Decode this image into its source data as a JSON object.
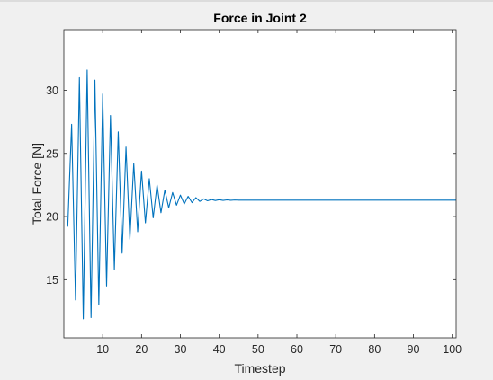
{
  "chart_data": {
    "type": "line",
    "title": "Force in Joint 2",
    "xlabel": "Timestep",
    "ylabel": "Total Force [N]",
    "xlim": [
      0,
      101
    ],
    "ylim": [
      10.4,
      34.8
    ],
    "xticks": [
      10,
      20,
      30,
      40,
      50,
      60,
      70,
      80,
      90,
      100
    ],
    "yticks": [
      15,
      20,
      25,
      30
    ],
    "grid": false,
    "line_color": "#0072bd",
    "series": [
      {
        "x": [
          1,
          2,
          3,
          4,
          5,
          6,
          7,
          8,
          9,
          10,
          11,
          12,
          13,
          14,
          15,
          16,
          17,
          18,
          19,
          20,
          21,
          22,
          23,
          24,
          25,
          26,
          27,
          28,
          29,
          30,
          31,
          32,
          33,
          34,
          35,
          36,
          37,
          38,
          39,
          40,
          41,
          42,
          43,
          44,
          45,
          46,
          47,
          48,
          49,
          50,
          51,
          52,
          53,
          54,
          55,
          56,
          57,
          58,
          59,
          60,
          61,
          62,
          63,
          64,
          65,
          66,
          67,
          68,
          69,
          70,
          71,
          72,
          73,
          74,
          75,
          76,
          77,
          78,
          79,
          80,
          81,
          82,
          83,
          84,
          85,
          86,
          87,
          88,
          89,
          90,
          91,
          92,
          93,
          94,
          95,
          96,
          97,
          98,
          99,
          100,
          101
        ],
        "values": [
          19.2,
          27.3,
          13.4,
          31.0,
          11.9,
          31.6,
          12.0,
          30.8,
          13.0,
          29.7,
          14.5,
          28.0,
          15.8,
          26.7,
          17.1,
          25.5,
          18.2,
          24.2,
          18.8,
          23.6,
          19.5,
          23.0,
          19.9,
          22.5,
          20.3,
          22.1,
          20.7,
          21.9,
          20.9,
          21.7,
          21.0,
          21.6,
          21.1,
          21.5,
          21.2,
          21.4,
          21.25,
          21.35,
          21.27,
          21.33,
          21.28,
          21.32,
          21.29,
          21.31,
          21.3,
          21.3,
          21.3,
          21.3,
          21.3,
          21.3,
          21.3,
          21.3,
          21.3,
          21.3,
          21.3,
          21.3,
          21.3,
          21.3,
          21.3,
          21.3,
          21.3,
          21.3,
          21.3,
          21.3,
          21.3,
          21.3,
          21.3,
          21.3,
          21.3,
          21.3,
          21.3,
          21.3,
          21.3,
          21.3,
          21.3,
          21.3,
          21.3,
          21.3,
          21.3,
          21.3,
          21.3,
          21.3,
          21.3,
          21.3,
          21.3,
          21.3,
          21.3,
          21.3,
          21.3,
          21.3,
          21.3,
          21.3,
          21.3,
          21.3,
          21.3,
          21.3,
          21.3,
          21.3,
          21.3,
          21.3,
          21.3
        ]
      }
    ]
  }
}
